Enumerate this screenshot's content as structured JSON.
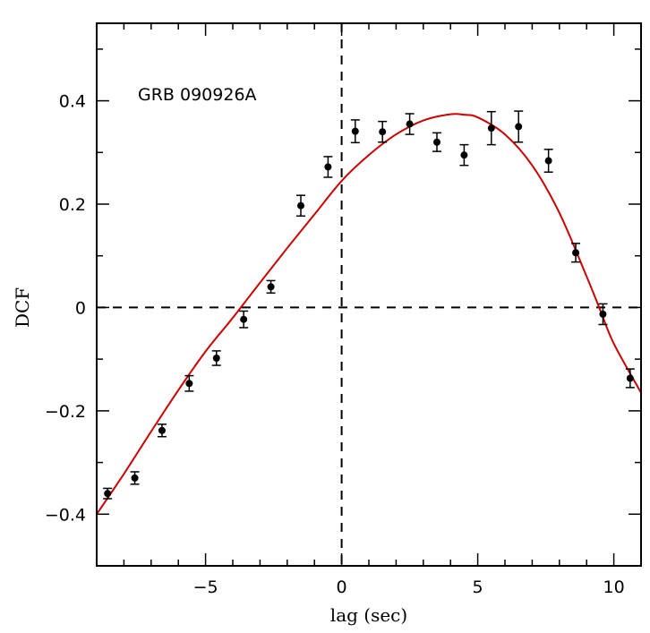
{
  "chart_data": {
    "type": "scatter",
    "title": "",
    "annotation": "GRB 090926A",
    "xlabel": "lag (sec)",
    "ylabel": "DCF",
    "xlim": [
      -9,
      11
    ],
    "ylim": [
      -0.5,
      0.55
    ],
    "x_ticks": [
      -5,
      0,
      5,
      10
    ],
    "x_tick_labels": [
      "−5",
      "0",
      "5",
      "10"
    ],
    "y_ticks": [
      -0.4,
      -0.2,
      0,
      0.2,
      0.4
    ],
    "y_tick_labels": [
      "−0.4",
      "−0.2",
      "0",
      "0.2",
      "0.4"
    ],
    "x_minor_step": 1,
    "y_minor_step": 0.1,
    "zero_lines": {
      "x": 0,
      "y": 0
    },
    "series": [
      {
        "kind": "points_with_errorbars",
        "color": "#000000",
        "points": [
          {
            "x": -8.6,
            "y": -0.36,
            "err": 0.01
          },
          {
            "x": -7.6,
            "y": -0.33,
            "err": 0.012
          },
          {
            "x": -6.6,
            "y": -0.238,
            "err": 0.012
          },
          {
            "x": -5.6,
            "y": -0.147,
            "err": 0.015
          },
          {
            "x": -4.6,
            "y": -0.098,
            "err": 0.014
          },
          {
            "x": -3.6,
            "y": -0.023,
            "err": 0.016
          },
          {
            "x": -2.6,
            "y": 0.04,
            "err": 0.012
          },
          {
            "x": -1.5,
            "y": 0.197,
            "err": 0.02
          },
          {
            "x": -0.5,
            "y": 0.272,
            "err": 0.02
          },
          {
            "x": 0.5,
            "y": 0.341,
            "err": 0.022
          },
          {
            "x": 1.5,
            "y": 0.34,
            "err": 0.02
          },
          {
            "x": 2.5,
            "y": 0.355,
            "err": 0.02
          },
          {
            "x": 3.5,
            "y": 0.32,
            "err": 0.018
          },
          {
            "x": 4.5,
            "y": 0.295,
            "err": 0.02
          },
          {
            "x": 5.5,
            "y": 0.347,
            "err": 0.032
          },
          {
            "x": 6.5,
            "y": 0.35,
            "err": 0.03
          },
          {
            "x": 7.6,
            "y": 0.284,
            "err": 0.022
          },
          {
            "x": 8.6,
            "y": 0.106,
            "err": 0.018
          },
          {
            "x": 9.6,
            "y": -0.013,
            "err": 0.02
          },
          {
            "x": 10.6,
            "y": -0.137,
            "err": 0.018
          }
        ]
      },
      {
        "kind": "fit_curve",
        "color": "#cc0000",
        "points": [
          {
            "x": -9.0,
            "y": -0.4
          },
          {
            "x": -8.0,
            "y": -0.322
          },
          {
            "x": -7.0,
            "y": -0.24
          },
          {
            "x": -6.0,
            "y": -0.16
          },
          {
            "x": -5.0,
            "y": -0.085
          },
          {
            "x": -4.0,
            "y": -0.02
          },
          {
            "x": -3.0,
            "y": 0.048
          },
          {
            "x": -2.0,
            "y": 0.115
          },
          {
            "x": -1.0,
            "y": 0.18
          },
          {
            "x": 0.0,
            "y": 0.245
          },
          {
            "x": 1.0,
            "y": 0.295
          },
          {
            "x": 2.0,
            "y": 0.335
          },
          {
            "x": 3.0,
            "y": 0.362
          },
          {
            "x": 4.0,
            "y": 0.374
          },
          {
            "x": 4.5,
            "y": 0.373
          },
          {
            "x": 5.0,
            "y": 0.368
          },
          {
            "x": 6.0,
            "y": 0.335
          },
          {
            "x": 7.0,
            "y": 0.275
          },
          {
            "x": 8.0,
            "y": 0.183
          },
          {
            "x": 9.0,
            "y": 0.06
          },
          {
            "x": 9.5,
            "y": -0.005
          },
          {
            "x": 10.0,
            "y": -0.07
          },
          {
            "x": 11.0,
            "y": -0.165
          }
        ]
      }
    ]
  }
}
